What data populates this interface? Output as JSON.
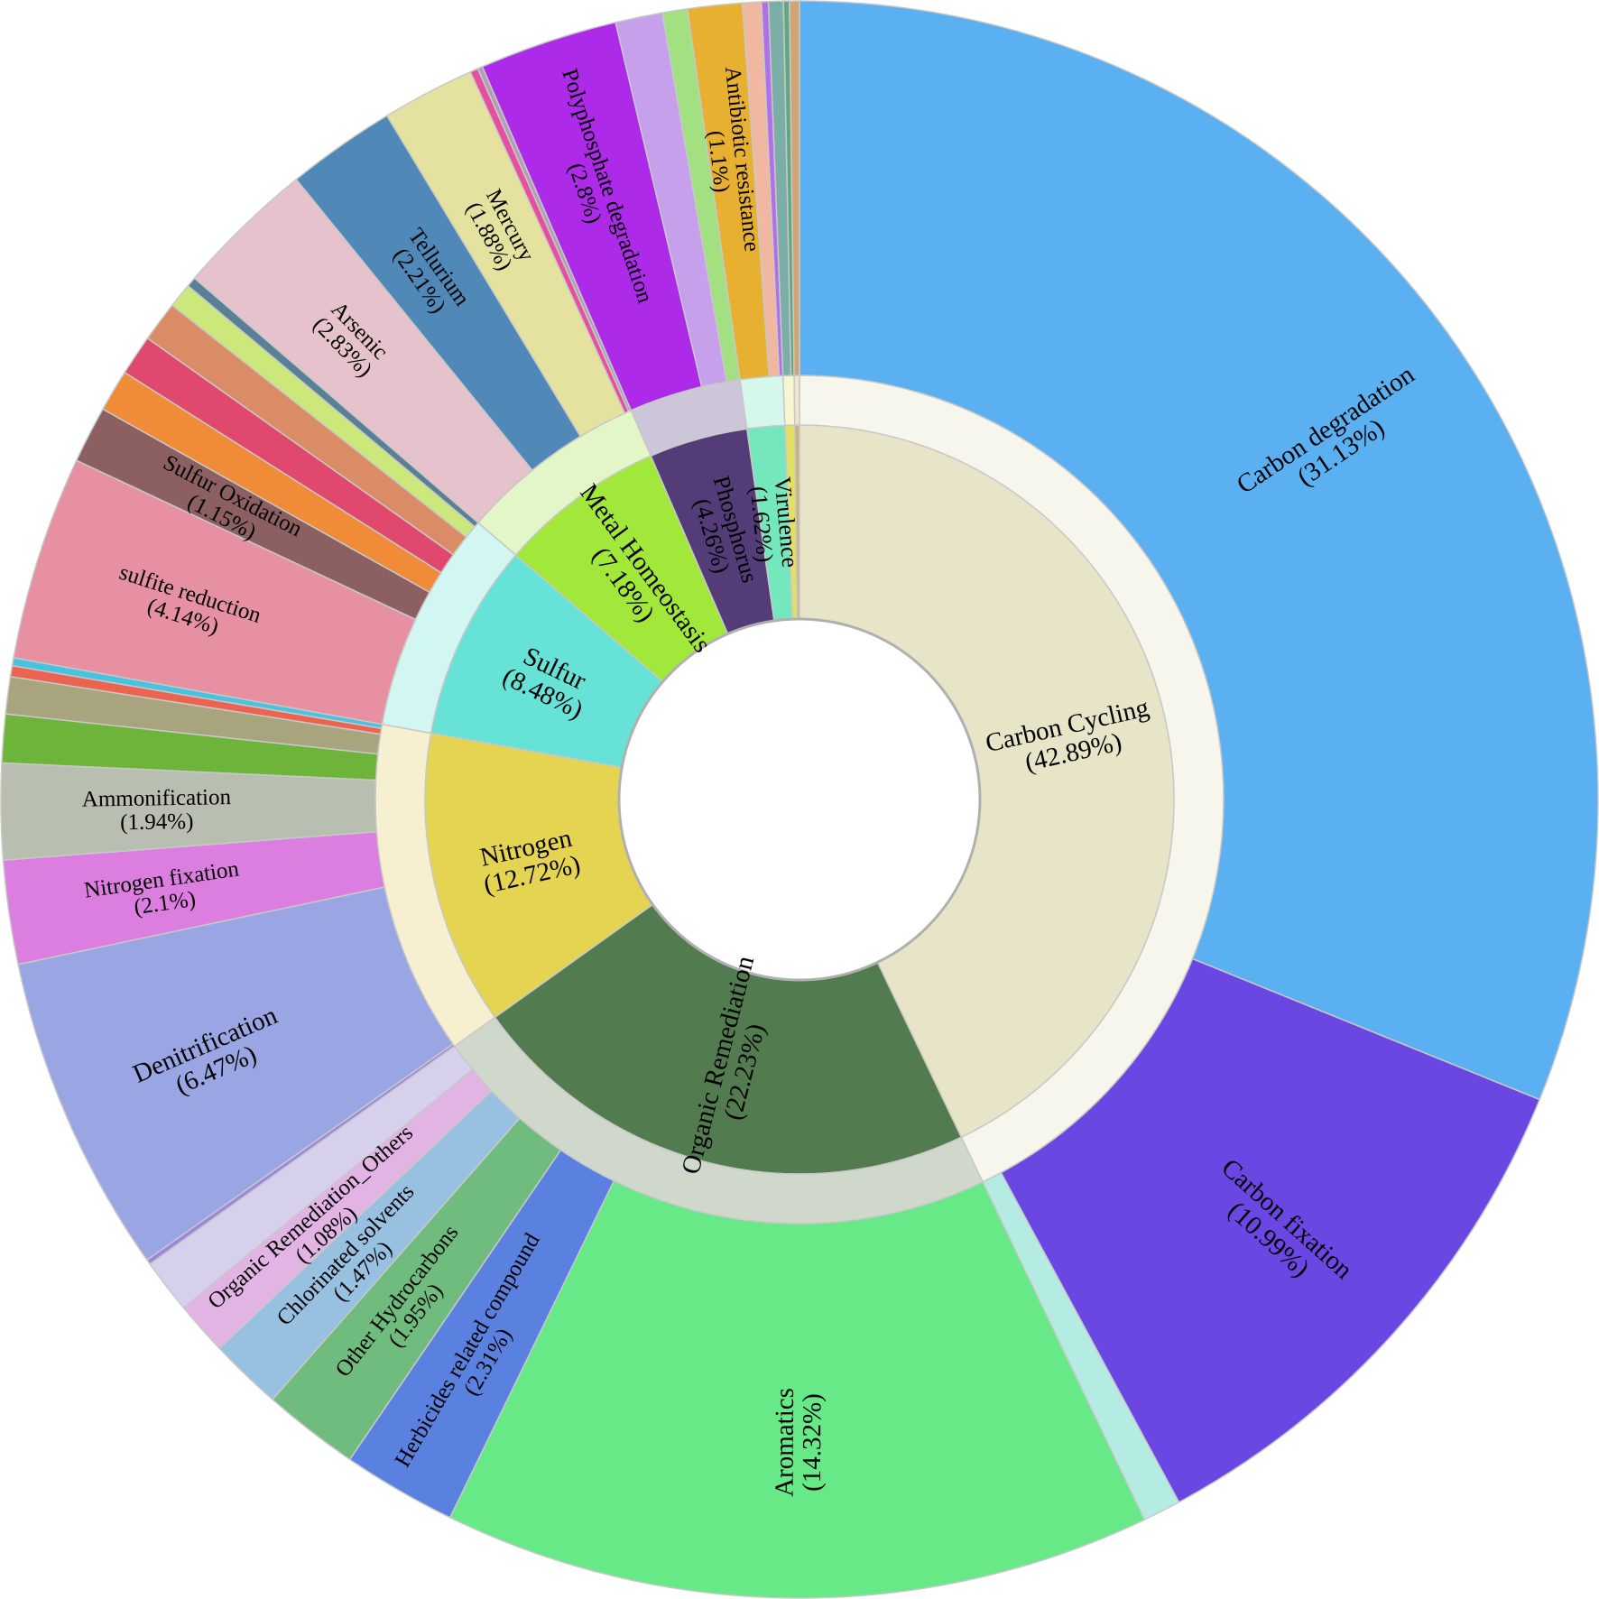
{
  "chart_data": {
    "type": "sunburst",
    "title": "",
    "segments": [
      {
        "name": "Carbon Cycling",
        "label": "Carbon Cycling",
        "pct_label": "(42.89%)",
        "value": 42.89,
        "color": "#e8e4c8",
        "sub_color": "#f6f6ec",
        "children": [
          {
            "name": "Carbon degradation",
            "label": "Carbon degradation",
            "pct_label": "(31.13%)",
            "value": 31.13,
            "color": "#5ab0f0"
          },
          {
            "name": "Carbon fixation",
            "label": "Carbon fixation",
            "pct_label": "(10.99%)",
            "value": 10.99,
            "color": "#6a47e3"
          },
          {
            "name": "",
            "label": "",
            "pct_label": "",
            "value": 0.77,
            "color": "#b4ece4"
          }
        ]
      },
      {
        "name": "Organic Remediation",
        "label": "Organic Remediation",
        "pct_label": "(22.23%)",
        "value": 22.23,
        "color": "#527c4f",
        "sub_color": "#cfd8ca",
        "children": [
          {
            "name": "Aromatics",
            "label": "Aromatics",
            "pct_label": "(14.32%)",
            "value": 14.32,
            "color": "#66e986"
          },
          {
            "name": "Herbicides related compound",
            "label": "Herbicides related compound",
            "pct_label": "(2.31%)",
            "value": 2.31,
            "color": "#5a80e0"
          },
          {
            "name": "Other Hydrocarbons",
            "label": "Other Hydrocarbons",
            "pct_label": "(1.95%)",
            "value": 1.95,
            "color": "#6fbc7e"
          },
          {
            "name": "Chlorinated solvents",
            "label": "Chlorinated solvents",
            "pct_label": "(1.47%)",
            "value": 1.47,
            "color": "#98c0e0"
          },
          {
            "name": "Organic Remediation_Others",
            "label": "Organic Remediation_Others",
            "pct_label": "(1.08%)",
            "value": 1.08,
            "color": "#e2b4e4"
          },
          {
            "name": "",
            "label": "",
            "pct_label": "",
            "value": 1.1,
            "color": "#d6d0ec"
          }
        ]
      },
      {
        "name": "Nitrogen",
        "label": "Nitrogen",
        "pct_label": "(12.72%)",
        "value": 12.72,
        "color": "#e4d452",
        "sub_color": "#f6f0d0",
        "children": [
          {
            "name": "",
            "label": "",
            "pct_label": "",
            "value": 0.1,
            "color": "#9a88e0"
          },
          {
            "name": "Denitrification",
            "label": "Denitrification",
            "pct_label": "(6.47%)",
            "value": 6.47,
            "color": "#9aa6e4"
          },
          {
            "name": "Nitrogen fixation",
            "label": "Nitrogen fixation",
            "pct_label": "(2.1%)",
            "value": 2.1,
            "color": "#dc7ee0"
          },
          {
            "name": "Ammonification",
            "label": "Ammonification",
            "pct_label": "(1.94%)",
            "value": 1.94,
            "color": "#b8bfb0"
          },
          {
            "name": "",
            "label": "",
            "pct_label": "",
            "value": 0.98,
            "color": "#6eb43a"
          },
          {
            "name": "",
            "label": "",
            "pct_label": "",
            "value": 0.75,
            "color": "#a8a57e"
          },
          {
            "name": "",
            "label": "",
            "pct_label": "",
            "value": 0.22,
            "color": "#ec6450"
          },
          {
            "name": "",
            "label": "",
            "pct_label": "",
            "value": 0.16,
            "color": "#48c2de"
          }
        ]
      },
      {
        "name": "Sulfur",
        "label": "Sulfur",
        "pct_label": "(8.48%)",
        "value": 8.48,
        "color": "#66e2d6",
        "sub_color": "#d2f6f2",
        "children": [
          {
            "name": "sulfite reduction",
            "label": "sulfite reduction",
            "pct_label": "(4.14%)",
            "value": 4.14,
            "color": "#e690a2"
          },
          {
            "name": "Sulfur Oxidation",
            "label": "Sulfur Oxidation",
            "pct_label": "(1.15%)",
            "value": 1.15,
            "color": "#8c6060"
          },
          {
            "name": "",
            "label": "",
            "pct_label": "",
            "value": 0.85,
            "color": "#f08c38"
          },
          {
            "name": "",
            "label": "",
            "pct_label": "",
            "value": 0.82,
            "color": "#e0486e"
          },
          {
            "name": "",
            "label": "",
            "pct_label": "",
            "value": 0.82,
            "color": "#da8c66"
          },
          {
            "name": "",
            "label": "",
            "pct_label": "",
            "value": 0.5,
            "color": "#cde87a"
          },
          {
            "name": "",
            "label": "",
            "pct_label": "",
            "value": 0.2,
            "color": "#5a8098"
          }
        ]
      },
      {
        "name": "Metal Homeostasis",
        "label": "Metal Homeostasis",
        "pct_label": "(7.18%)",
        "value": 7.18,
        "color": "#a2e83a",
        "sub_color": "#e2f6c8",
        "children": [
          {
            "name": "Arsenic",
            "label": "Arsenic",
            "pct_label": "(2.83%)",
            "value": 2.83,
            "color": "#e6c2cc"
          },
          {
            "name": "Tellurium",
            "label": "Tellurium",
            "pct_label": "(2.21%)",
            "value": 2.21,
            "color": "#5088b8"
          },
          {
            "name": "Mercury",
            "label": "Mercury",
            "pct_label": "(1.88%)",
            "value": 1.88,
            "color": "#e4e29e"
          },
          {
            "name": "",
            "label": "",
            "pct_label": "",
            "value": 0.16,
            "color": "#e64ea0"
          },
          {
            "name": "",
            "label": "",
            "pct_label": "",
            "value": 0.1,
            "color": "#b0a0b6"
          }
        ]
      },
      {
        "name": "Phosphorus",
        "label": "Phosphorus",
        "pct_label": "(4.26%)",
        "value": 4.26,
        "color": "#533c78",
        "sub_color": "#ccc6d8",
        "children": [
          {
            "name": "Polyphosphate degradation",
            "label": "Polyphosphate degradation",
            "pct_label": "(2.8%)",
            "value": 2.8,
            "color": "#ac2ae8"
          },
          {
            "name": "",
            "label": "",
            "pct_label": "",
            "value": 0.95,
            "color": "#c6a0ea"
          },
          {
            "name": "",
            "label": "",
            "pct_label": "",
            "value": 0.51,
            "color": "#a2e082"
          }
        ]
      },
      {
        "name": "Virulence",
        "label": "Virulence",
        "pct_label": "(1.62%)",
        "value": 1.62,
        "color": "#74e8bc",
        "sub_color": "#d6f8ec",
        "children": [
          {
            "name": "Antibiotic resistance",
            "label": "Antibiotic resistance",
            "pct_label": "(1.1%)",
            "value": 1.1,
            "color": "#e8b030"
          },
          {
            "name": "",
            "label": "",
            "pct_label": "",
            "value": 0.38,
            "color": "#f0b8a0"
          },
          {
            "name": "",
            "label": "",
            "pct_label": "",
            "value": 0.14,
            "color": "#b070e8"
          }
        ]
      },
      {
        "name": "",
        "label": "",
        "pct_label": "",
        "value": 0.42,
        "color": "#e0e064",
        "sub_color": "#f6f6d0",
        "children": [
          {
            "name": "",
            "label": "",
            "pct_label": "",
            "value": 0.3,
            "color": "#7aaea6"
          },
          {
            "name": "",
            "label": "",
            "pct_label": "",
            "value": 0.12,
            "color": "#60a884"
          }
        ]
      },
      {
        "name": "",
        "label": "",
        "pct_label": "",
        "value": 0.2,
        "color": "#c8b47a",
        "sub_color": "#efe6cc",
        "children": [
          {
            "name": "",
            "label": "",
            "pct_label": "",
            "value": 0.2,
            "color": "#d2a474"
          }
        ]
      }
    ]
  }
}
